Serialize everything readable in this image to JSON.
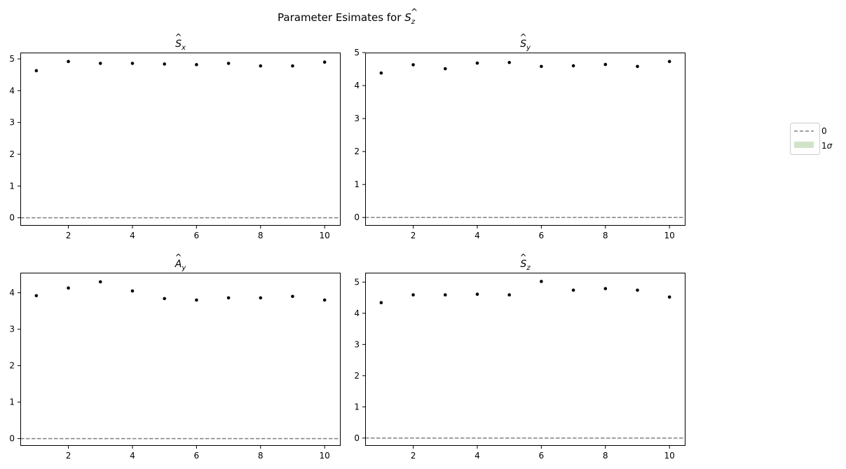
{
  "figure": {
    "suptitle_prefix": "Parameter Esimates for ",
    "suptitle_sym": "S",
    "suptitle_sub": "z"
  },
  "legend": {
    "entries": [
      {
        "label": "0",
        "style": "dashed-line",
        "color": "#808080"
      },
      {
        "label_main": "1",
        "label_sym": "σ",
        "style": "filled-patch",
        "color": "#cfe3c9"
      }
    ],
    "placement": "right-center"
  },
  "colors": {
    "points": "#000000",
    "zero_line": "#808080",
    "band": "#cfe3c9"
  },
  "chart_data": [
    {
      "type": "scatter",
      "title_sym": "S",
      "title_sub": "x",
      "x": [
        1,
        2,
        3,
        4,
        5,
        6,
        7,
        8,
        9,
        10
      ],
      "y": [
        4.63,
        4.92,
        4.86,
        4.86,
        4.84,
        4.82,
        4.86,
        4.78,
        4.78,
        4.9
      ],
      "xlim": [
        0.5,
        10.5
      ],
      "ylim": [
        -0.25,
        5.2
      ],
      "xticks": [
        2,
        4,
        6,
        8,
        10
      ],
      "yticks": [
        0,
        1,
        2,
        3,
        4,
        5
      ],
      "zero_line": 0
    },
    {
      "type": "scatter",
      "title_sym": "S",
      "title_sub": "y",
      "x": [
        1,
        2,
        3,
        4,
        5,
        6,
        7,
        8,
        9,
        10
      ],
      "y": [
        4.38,
        4.63,
        4.51,
        4.68,
        4.7,
        4.58,
        4.6,
        4.64,
        4.58,
        4.73
      ],
      "xlim": [
        0.5,
        10.5
      ],
      "ylim": [
        -0.25,
        5.0
      ],
      "xticks": [
        2,
        4,
        6,
        8,
        10
      ],
      "yticks": [
        0,
        1,
        2,
        3,
        4,
        5
      ],
      "zero_line": 0
    },
    {
      "type": "scatter",
      "title_sym": "A",
      "title_sub": "y",
      "x": [
        1,
        2,
        3,
        4,
        5,
        6,
        7,
        8,
        9,
        10
      ],
      "y": [
        3.92,
        4.13,
        4.3,
        4.05,
        3.84,
        3.8,
        3.86,
        3.86,
        3.9,
        3.8
      ],
      "xlim": [
        0.5,
        10.5
      ],
      "ylim": [
        -0.2,
        4.55
      ],
      "xticks": [
        2,
        4,
        6,
        8,
        10
      ],
      "yticks": [
        0,
        1,
        2,
        3,
        4
      ],
      "zero_line": 0
    },
    {
      "type": "scatter",
      "title_sym": "S",
      "title_sub": "z",
      "x": [
        1,
        2,
        3,
        4,
        5,
        6,
        7,
        8,
        9,
        10
      ],
      "y": [
        4.34,
        4.59,
        4.59,
        4.61,
        4.59,
        5.02,
        4.74,
        4.79,
        4.74,
        4.52
      ],
      "xlim": [
        0.5,
        10.5
      ],
      "ylim": [
        -0.25,
        5.3
      ],
      "xticks": [
        2,
        4,
        6,
        8,
        10
      ],
      "yticks": [
        0,
        1,
        2,
        3,
        4,
        5
      ],
      "zero_line": 0
    }
  ]
}
